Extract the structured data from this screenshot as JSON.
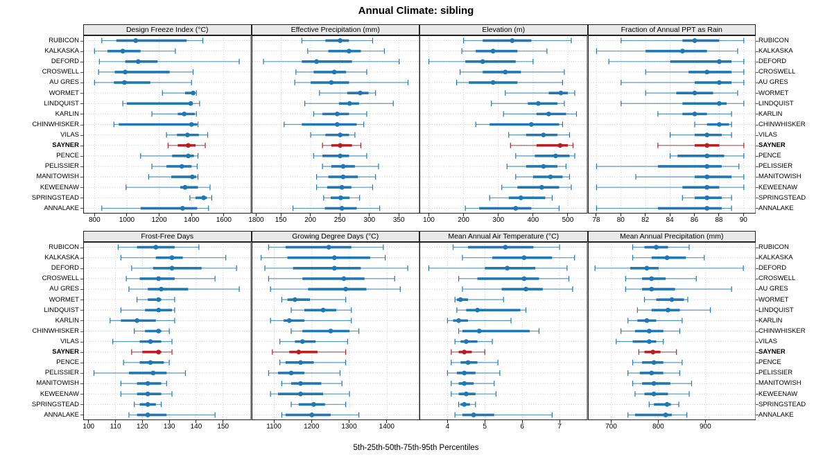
{
  "header": {
    "title": "Annual Climate: sibling"
  },
  "footer": {
    "caption": "5th-25th-50th-75th-95th Percentiles"
  },
  "chart_data": {
    "type": "dotplot-trellis",
    "layout": {
      "rows": 2,
      "cols": 4,
      "grid": "dotted",
      "legend": "none"
    },
    "percentile_labels": [
      "5th",
      "25th",
      "50th",
      "75th",
      "95th"
    ],
    "sites": [
      "RUBICON",
      "KALKASKA",
      "DEFORD",
      "CROSWELL",
      "AU GRES",
      "WORMET",
      "LINDQUIST",
      "KARLIN",
      "CHINWHISKER",
      "VILAS",
      "SAYNER",
      "PENCE",
      "PELISSIER",
      "MANITOWISH",
      "KEWEENAW",
      "SPRINGSTEAD",
      "ANNALAKE"
    ],
    "highlight_site": "SAYNER",
    "colors": {
      "series": "#1f77b4",
      "highlight": "#b22222",
      "grid": "#c9c9c9",
      "panel_header_bg": "#e9e9e9",
      "border": "#222222"
    },
    "panels": [
      {
        "title": "Design Freeze Index (°C)",
        "ticks": [
          800,
          1000,
          1200,
          1400,
          1600,
          1800
        ],
        "domain": [
          730,
          1770
        ],
        "values": [
          [
            845,
            935,
            1055,
            1370,
            1470
          ],
          [
            800,
            880,
            975,
            1085,
            1300
          ],
          [
            830,
            990,
            1070,
            1190,
            1695
          ],
          [
            825,
            925,
            990,
            1265,
            1410
          ],
          [
            800,
            920,
            985,
            1145,
            1400
          ],
          [
            1220,
            1360,
            1410,
            1420,
            1430
          ],
          [
            975,
            1000,
            1395,
            1405,
            1450
          ],
          [
            1155,
            1315,
            1355,
            1420,
            1430
          ],
          [
            920,
            950,
            1400,
            1435,
            1440
          ],
          [
            1245,
            1310,
            1375,
            1445,
            1500
          ],
          [
            1255,
            1315,
            1380,
            1425,
            1485
          ],
          [
            1085,
            1280,
            1380,
            1415,
            1440
          ],
          [
            1155,
            1245,
            1340,
            1400,
            1435
          ],
          [
            1135,
            1275,
            1405,
            1430,
            1440
          ],
          [
            995,
            1330,
            1360,
            1440,
            1515
          ],
          [
            1390,
            1425,
            1475,
            1495,
            1525
          ],
          [
            845,
            1085,
            1345,
            1435,
            1505
          ]
        ]
      },
      {
        "title": "Effective Precipitation (mm)",
        "ticks": [
          150,
          200,
          250,
          300,
          350
        ],
        "domain": [
          100,
          385
        ],
        "values": [
          [
            185,
            225,
            250,
            265,
            305
          ],
          [
            195,
            230,
            265,
            285,
            325
          ],
          [
            120,
            185,
            210,
            270,
            350
          ],
          [
            175,
            205,
            240,
            260,
            295
          ],
          [
            173,
            200,
            235,
            265,
            365
          ],
          [
            215,
            262,
            284,
            298,
            310
          ],
          [
            190,
            248,
            266,
            282,
            340
          ],
          [
            205,
            220,
            245,
            265,
            295
          ],
          [
            155,
            185,
            245,
            278,
            290
          ],
          [
            200,
            225,
            250,
            265,
            275
          ],
          [
            220,
            235,
            250,
            270,
            285
          ],
          [
            205,
            220,
            250,
            265,
            295
          ],
          [
            220,
            235,
            255,
            275,
            315
          ],
          [
            210,
            230,
            255,
            280,
            310
          ],
          [
            210,
            228,
            253,
            269,
            305
          ],
          [
            222,
            234,
            251,
            266,
            283
          ],
          [
            170,
            224,
            253,
            278,
            317
          ]
        ]
      },
      {
        "title": "Elevation (m)",
        "ticks": [
          100,
          200,
          300,
          400,
          500
        ],
        "domain": [
          73,
          557
        ],
        "values": [
          [
            200,
            255,
            340,
            395,
            510
          ],
          [
            195,
            235,
            285,
            355,
            440
          ],
          [
            100,
            205,
            255,
            350,
            400
          ],
          [
            190,
            255,
            320,
            365,
            490
          ],
          [
            180,
            215,
            285,
            355,
            485
          ],
          [
            320,
            445,
            480,
            500,
            520
          ],
          [
            280,
            385,
            415,
            470,
            490
          ],
          [
            315,
            410,
            445,
            495,
            525
          ],
          [
            235,
            275,
            395,
            475,
            485
          ],
          [
            330,
            380,
            430,
            470,
            505
          ],
          [
            335,
            410,
            478,
            500,
            515
          ],
          [
            350,
            405,
            465,
            505,
            520
          ],
          [
            325,
            380,
            430,
            470,
            495
          ],
          [
            350,
            400,
            450,
            485,
            505
          ],
          [
            310,
            355,
            425,
            475,
            510
          ],
          [
            275,
            330,
            365,
            435,
            455
          ],
          [
            205,
            245,
            350,
            395,
            475
          ]
        ]
      },
      {
        "title": "Fraction of Annual PPT as Rain",
        "ticks": [
          78,
          80,
          82,
          84,
          86,
          88,
          90
        ],
        "domain": [
          77.3,
          91.0
        ],
        "values": [
          [
            80,
            85,
            86,
            88,
            90
          ],
          [
            78,
            82,
            85,
            87,
            89.5
          ],
          [
            79,
            84,
            88,
            89,
            90
          ],
          [
            82,
            85.5,
            87,
            89,
            90
          ],
          [
            80,
            86,
            88,
            89,
            90
          ],
          [
            82,
            84.5,
            86,
            87.5,
            89.5
          ],
          [
            80,
            85,
            88,
            88.6,
            90
          ],
          [
            83,
            85,
            86,
            87,
            89
          ],
          [
            86,
            87,
            88,
            88.8,
            89
          ],
          [
            84,
            86,
            87,
            88.2,
            89
          ],
          [
            83,
            86,
            87,
            88,
            90
          ],
          [
            84,
            84.6,
            87,
            88.4,
            90
          ],
          [
            78,
            83,
            87,
            88.2,
            89.6
          ],
          [
            81.2,
            86,
            87,
            89,
            90
          ],
          [
            78,
            85,
            87,
            88,
            90
          ],
          [
            85,
            86,
            87,
            88.2,
            89
          ],
          [
            78,
            83,
            87,
            88.2,
            89
          ]
        ]
      },
      {
        "title": "Frost-Free Days",
        "ticks": [
          100,
          110,
          120,
          130,
          140,
          150
        ],
        "domain": [
          98,
          160.5
        ],
        "values": [
          [
            111,
            118,
            125,
            132,
            141
          ],
          [
            112,
            125,
            131,
            135,
            151
          ],
          [
            116,
            124,
            131,
            142,
            155
          ],
          [
            114,
            119,
            126,
            132,
            147
          ],
          [
            115,
            122,
            127,
            137,
            156
          ],
          [
            118,
            122,
            126,
            127,
            132
          ],
          [
            112,
            121,
            126,
            131,
            132
          ],
          [
            108,
            112,
            118,
            125,
            132
          ],
          [
            117,
            121,
            126,
            127,
            130
          ],
          [
            109,
            119,
            123,
            127,
            131
          ],
          [
            116,
            120,
            126,
            127,
            131
          ],
          [
            113,
            119,
            123,
            128,
            130
          ],
          [
            102,
            115,
            124,
            129,
            136
          ],
          [
            112,
            118,
            122,
            127,
            129
          ],
          [
            112,
            118,
            122,
            127,
            131
          ],
          [
            117,
            119,
            122,
            125,
            127
          ],
          [
            115,
            118,
            122,
            129,
            147
          ]
        ]
      },
      {
        "title": "Growing Degree Days (°C)",
        "ticks": [
          1100,
          1200,
          1300,
          1400
        ],
        "domain": [
          1040,
          1487
        ],
        "values": [
          [
            1085,
            1130,
            1245,
            1305,
            1390
          ],
          [
            1065,
            1135,
            1260,
            1355,
            1395
          ],
          [
            1075,
            1150,
            1260,
            1330,
            1455
          ],
          [
            1085,
            1175,
            1285,
            1340,
            1420
          ],
          [
            1090,
            1190,
            1290,
            1345,
            1435
          ],
          [
            1120,
            1135,
            1155,
            1195,
            1290
          ],
          [
            1145,
            1180,
            1230,
            1265,
            1305
          ],
          [
            1090,
            1125,
            1140,
            1180,
            1305
          ],
          [
            1145,
            1175,
            1250,
            1300,
            1325
          ],
          [
            1115,
            1155,
            1175,
            1210,
            1295
          ],
          [
            1095,
            1140,
            1165,
            1215,
            1290
          ],
          [
            1115,
            1130,
            1170,
            1205,
            1290
          ],
          [
            1085,
            1110,
            1145,
            1180,
            1275
          ],
          [
            1120,
            1145,
            1170,
            1225,
            1280
          ],
          [
            1090,
            1110,
            1170,
            1230,
            1300
          ],
          [
            1145,
            1165,
            1205,
            1235,
            1290
          ],
          [
            1120,
            1130,
            1200,
            1250,
            1325
          ]
        ]
      },
      {
        "title": "Mean Annual Air Temperature (°C)",
        "ticks": [
          4,
          5,
          6,
          7
        ],
        "domain": [
          3.25,
          7.75
        ],
        "values": [
          [
            4.15,
            4.55,
            5.55,
            6.3,
            7.0
          ],
          [
            4.4,
            5.2,
            6.05,
            6.8,
            7.4
          ],
          [
            3.5,
            5.0,
            5.6,
            6.35,
            7.2
          ],
          [
            4.3,
            4.8,
            6.05,
            6.45,
            7.25
          ],
          [
            4.4,
            5.45,
            6.1,
            6.55,
            7.35
          ],
          [
            4.2,
            4.25,
            4.35,
            4.55,
            5.5
          ],
          [
            4.25,
            4.5,
            4.8,
            5.95,
            6.1
          ],
          [
            4.0,
            4.15,
            4.3,
            4.55,
            5.7
          ],
          [
            4.3,
            4.4,
            4.85,
            6.2,
            6.45
          ],
          [
            4.2,
            4.35,
            4.5,
            4.8,
            5.2
          ],
          [
            4.1,
            4.3,
            4.45,
            4.65,
            5.0
          ],
          [
            4.1,
            4.35,
            4.55,
            4.8,
            5.35
          ],
          [
            4.0,
            4.25,
            4.45,
            4.75,
            5.4
          ],
          [
            4.1,
            4.3,
            4.45,
            4.7,
            5.25
          ],
          [
            4.1,
            4.3,
            4.5,
            4.75,
            5.3
          ],
          [
            4.3,
            4.35,
            4.45,
            4.6,
            4.75
          ],
          [
            4.2,
            4.4,
            4.7,
            5.25,
            6.8
          ]
        ]
      },
      {
        "title": "Mean Annual Precipitation (mm)",
        "ticks": [
          700,
          800,
          900
        ],
        "domain": [
          650,
          1007
        ],
        "values": [
          [
            745,
            770,
            795,
            820,
            865
          ],
          [
            745,
            785,
            818,
            858,
            897
          ],
          [
            665,
            740,
            775,
            800,
            980
          ],
          [
            730,
            765,
            785,
            815,
            880
          ],
          [
            730,
            765,
            785,
            835,
            955
          ],
          [
            770,
            795,
            828,
            854,
            862
          ],
          [
            755,
            785,
            820,
            845,
            910
          ],
          [
            735,
            755,
            775,
            795,
            850
          ],
          [
            720,
            750,
            780,
            810,
            845
          ],
          [
            710,
            745,
            780,
            795,
            810
          ],
          [
            758,
            770,
            788,
            804,
            838
          ],
          [
            745,
            765,
            790,
            810,
            850
          ],
          [
            735,
            760,
            785,
            810,
            845
          ],
          [
            745,
            765,
            790,
            825,
            870
          ],
          [
            750,
            770,
            790,
            820,
            865
          ],
          [
            780,
            790,
            818,
            826,
            843
          ],
          [
            735,
            750,
            815,
            828,
            860
          ]
        ]
      }
    ]
  }
}
